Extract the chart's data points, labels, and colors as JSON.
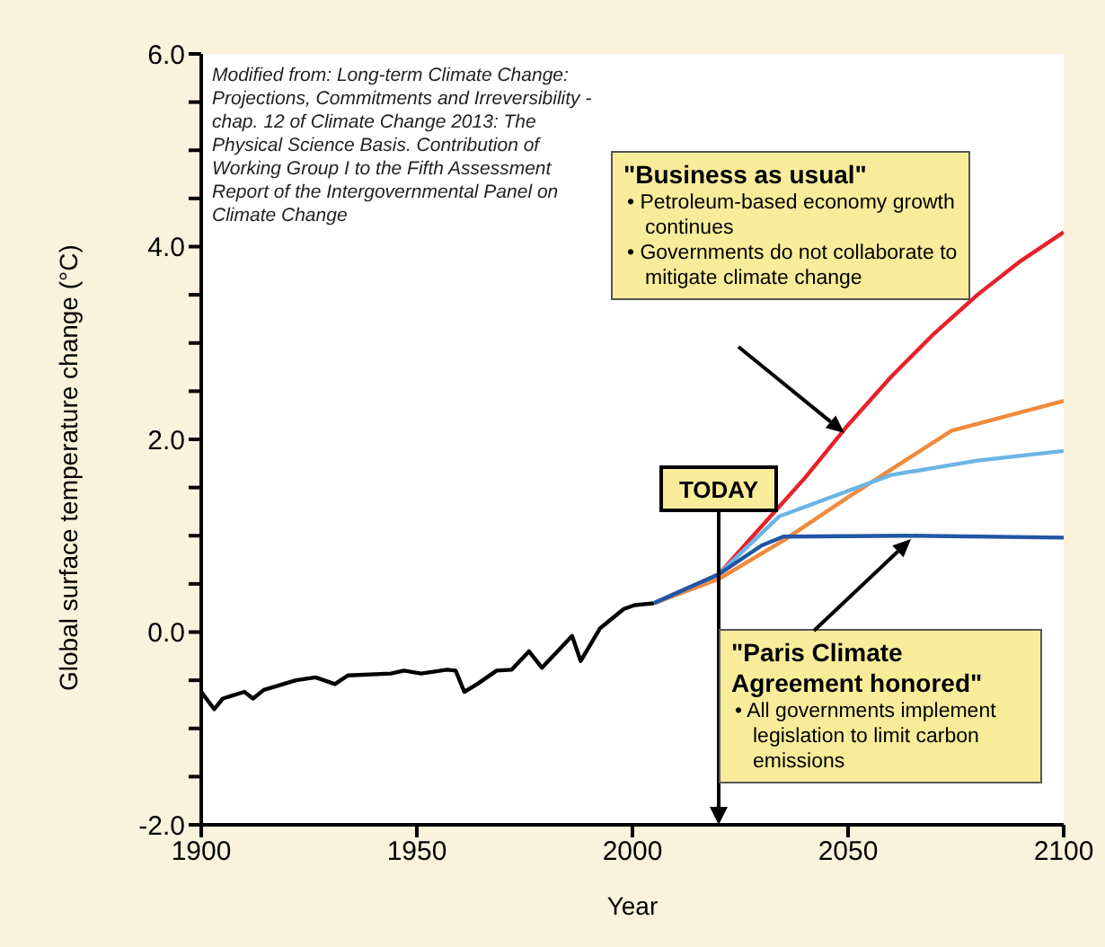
{
  "chart_data": {
    "type": "line",
    "xlabel": "Year",
    "ylabel": "Global surface temperature change (°C)",
    "xlim": [
      1900,
      2100
    ],
    "xticks": [
      1900,
      1950,
      2000,
      2050,
      2100
    ],
    "ylim": [
      -2,
      6
    ],
    "yticks": [
      {
        "value": -2,
        "label": "-2.0"
      },
      {
        "value": -1.5,
        "label": null
      },
      {
        "value": -1,
        "label": null
      },
      {
        "value": -0.5,
        "label": null
      },
      {
        "value": 0,
        "label": "0.0"
      },
      {
        "value": 0.5,
        "label": null
      },
      {
        "value": 1,
        "label": null
      },
      {
        "value": 1.5,
        "label": null
      },
      {
        "value": 2,
        "label": "2.0"
      },
      {
        "value": 2.5,
        "label": null
      },
      {
        "value": 3,
        "label": null
      },
      {
        "value": 3.5,
        "label": null
      },
      {
        "value": 4,
        "label": "4.0"
      },
      {
        "value": 4.5,
        "label": null
      },
      {
        "value": 5,
        "label": null
      },
      {
        "value": 5.5,
        "label": null
      },
      {
        "value": 6,
        "label": "6.0"
      }
    ],
    "marker": "none",
    "line_style": "solid",
    "series": [
      {
        "color": "#000000",
        "x": [
          1900,
          1903,
          1905,
          1910,
          1912,
          1914.5,
          1922,
          1926.5,
          1931,
          1934,
          1944,
          1947,
          1951,
          1957,
          1959,
          1961,
          1964,
          1968.5,
          1972,
          1976,
          1979,
          1986,
          1988,
          1992.5,
          1998,
          2000.5,
          2005
        ],
        "values": [
          -0.62,
          -0.8,
          -0.69,
          -0.62,
          -0.69,
          -0.6,
          -0.5,
          -0.47,
          -0.54,
          -0.45,
          -0.43,
          -0.4,
          -0.43,
          -0.39,
          -0.4,
          -0.62,
          -0.54,
          -0.4,
          -0.39,
          -0.2,
          -0.37,
          -0.04,
          -0.3,
          0.04,
          0.24,
          0.28,
          0.3
        ]
      },
      {
        "color": "#e8202a",
        "x": [
          2005,
          2020,
          2030,
          2040,
          2050,
          2060,
          2070,
          2080,
          2090,
          2100
        ],
        "values": [
          0.3,
          0.6,
          1.1,
          1.6,
          2.15,
          2.65,
          3.1,
          3.5,
          3.85,
          4.15
        ]
      },
      {
        "color": "#f08a3c",
        "x": [
          2005,
          2020,
          2035,
          2050,
          2074,
          2100
        ],
        "values": [
          0.3,
          0.55,
          0.95,
          1.4,
          2.09,
          2.4
        ]
      },
      {
        "color": "#6cb4e4",
        "x": [
          2005,
          2020,
          2034,
          2060,
          2080,
          2100
        ],
        "values": [
          0.3,
          0.6,
          1.2,
          1.63,
          1.78,
          1.88
        ]
      },
      {
        "color": "#2255a4",
        "x": [
          2005,
          2020,
          2030,
          2035,
          2064,
          2100
        ],
        "values": [
          0.3,
          0.6,
          0.9,
          0.99,
          1.0,
          0.98
        ]
      }
    ],
    "ref_lines": [
      {
        "axis": "x",
        "value": 2020,
        "label": "TODAY"
      }
    ],
    "annotations": [
      "Modified from: Long-term Climate Change: Projections, Commitments and Irreversibility - chap. 12 of Climate Change 2013: The Physical Science Basis. Contribution of Working Group I to the Fifth Assessment Report of the Intergovernmental Panel on Climate Change",
      "\"Business as usual\"\n• Petroleum-based economy growth continues\n• Governments do not collaborate to mitigate climate change",
      "\"Paris Climate Agreement honored\"\n• All governments implement legislation to limit carbon emissions"
    ]
  }
}
